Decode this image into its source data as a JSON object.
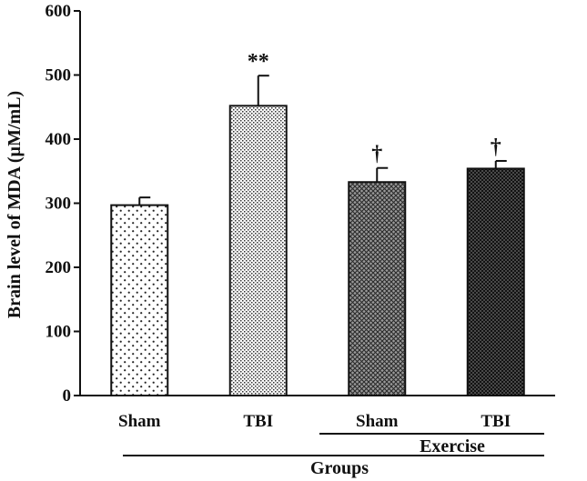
{
  "chart_data": {
    "type": "bar",
    "title": "",
    "ylabel": "Brain level of MDA (µM/mL)",
    "xlabel": "Groups",
    "ylim": [
      0,
      600
    ],
    "yticks": [
      "0",
      "100",
      "200",
      "300",
      "400",
      "500",
      "600"
    ],
    "grid": false,
    "legend": "none",
    "categories": [
      "Sham",
      "TBI",
      "Sham",
      "TBI"
    ],
    "values": [
      297,
      452,
      333,
      354
    ],
    "errors": [
      12,
      47,
      22,
      12
    ],
    "annotations": [
      "",
      "**",
      "†",
      "†"
    ],
    "subgroup_label": "Exercise",
    "subgroup_categories": [
      2,
      3
    ],
    "patterns": [
      "sparse-dots",
      "fine-dots",
      "crosshatch",
      "dense-crosshatch"
    ]
  }
}
